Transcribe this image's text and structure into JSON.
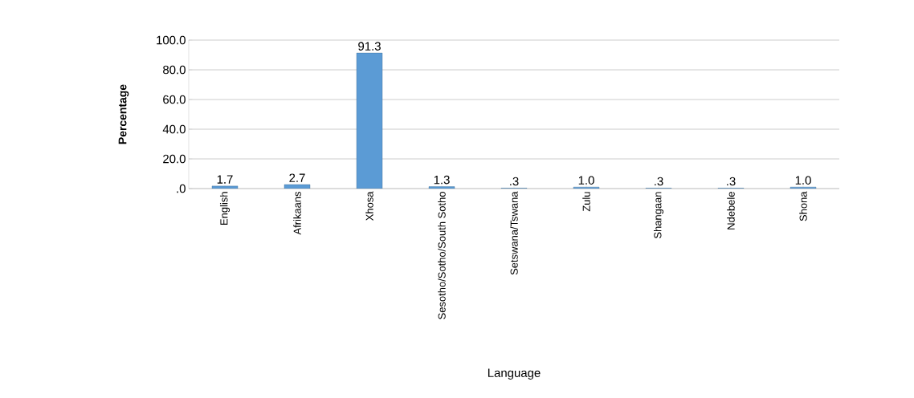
{
  "chart_data": {
    "type": "bar",
    "xlabel": "Language",
    "ylabel": "Percentage",
    "categories": [
      "English",
      "Afrikaans",
      "Xhosa",
      "Sesotho/Sotho/South Sotho",
      "Setswana/Tswana",
      "Zulu",
      "Shangaan",
      "Ndebele",
      "Shona"
    ],
    "values": [
      1.7,
      2.7,
      91.3,
      1.3,
      0.3,
      1.0,
      0.3,
      0.3,
      1.0
    ],
    "value_labels": [
      "1.7",
      "2.7",
      "91.3",
      "1.3",
      ".3",
      "1.0",
      ".3",
      ".3",
      "1.0"
    ],
    "color": "#5b9bd5",
    "ylim": [
      0,
      100
    ],
    "yticks": [
      {
        "value": 0,
        "label": ".0"
      },
      {
        "value": 20,
        "label": "20.0"
      },
      {
        "value": 40,
        "label": "40.0"
      },
      {
        "value": 60,
        "label": "60.0"
      },
      {
        "value": 80,
        "label": "80.0"
      },
      {
        "value": 100,
        "label": "100.0"
      }
    ],
    "grid": "y"
  }
}
